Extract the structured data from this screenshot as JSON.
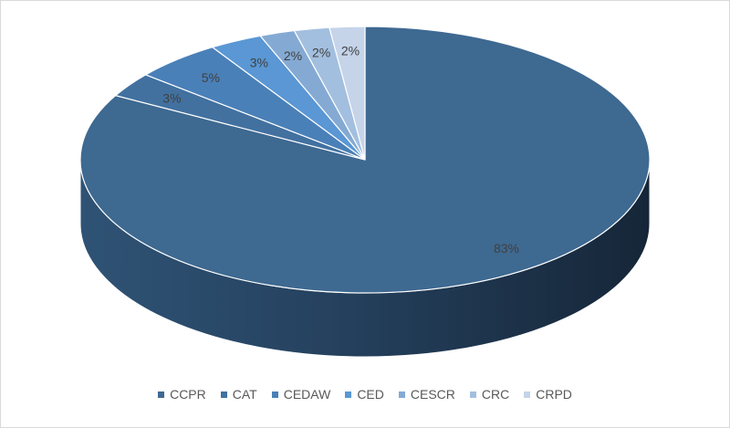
{
  "chart_data": {
    "type": "pie",
    "title": "",
    "three_d": true,
    "legend_position": "bottom",
    "slices": [
      {
        "label": "CCPR",
        "value": 83,
        "display": "83%",
        "color": "#3e6991"
      },
      {
        "label": "CAT",
        "value": 3,
        "display": "3%",
        "color": "#4271a0"
      },
      {
        "label": "CEDAW",
        "value": 5,
        "display": "5%",
        "color": "#4a80b8"
      },
      {
        "label": "CED",
        "value": 3,
        "display": "3%",
        "color": "#5a97d4"
      },
      {
        "label": "CESCR",
        "value": 2,
        "display": "2%",
        "color": "#84aad4"
      },
      {
        "label": "CRC",
        "value": 2,
        "display": "2%",
        "color": "#a3bfdf"
      },
      {
        "label": "CRPD",
        "value": 2,
        "display": "2%",
        "color": "#c5d4e9"
      }
    ]
  }
}
